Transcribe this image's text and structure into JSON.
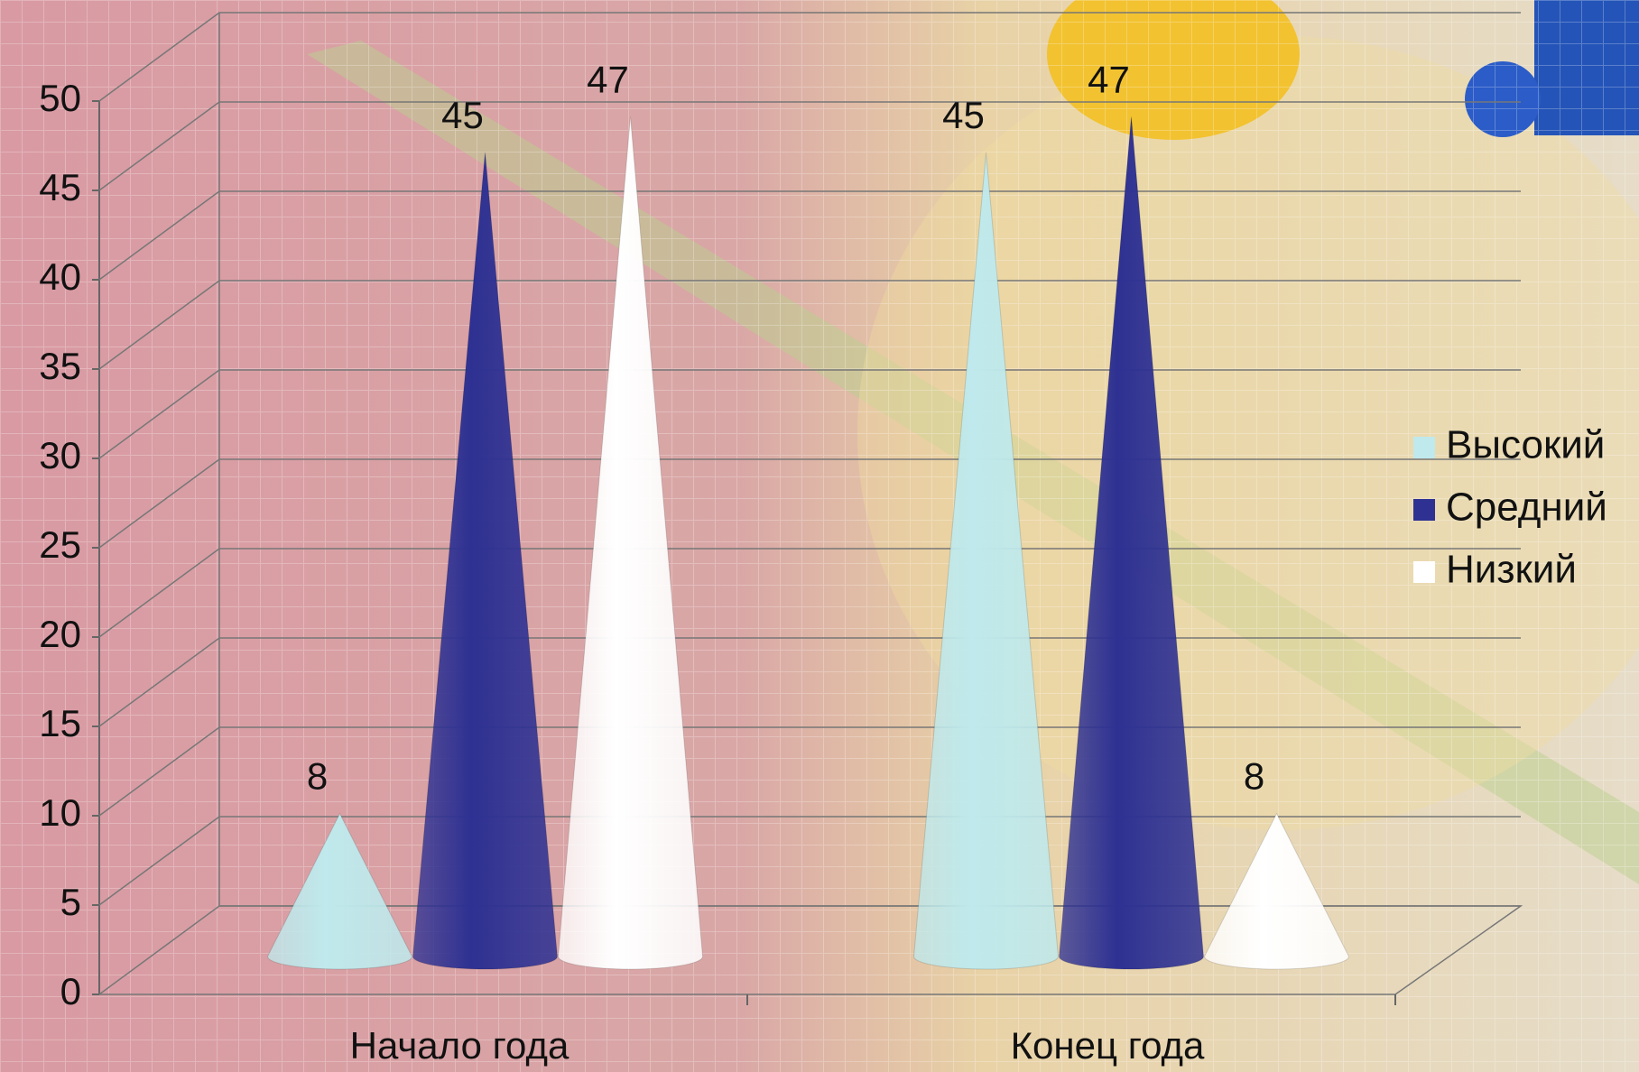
{
  "chart_data": {
    "type": "cone",
    "categories": [
      "Начало года",
      "Конец года"
    ],
    "series": [
      {
        "name": "Высокий",
        "color": "#bfe9ec",
        "values": [
          8,
          45
        ]
      },
      {
        "name": "Средний",
        "color": "#2e3192",
        "values": [
          45,
          47
        ]
      },
      {
        "name": "Низкий",
        "color": "#ffffff",
        "values": [
          47,
          8
        ]
      }
    ],
    "ylim": [
      0,
      50
    ],
    "yticks": [
      0,
      5,
      10,
      15,
      20,
      25,
      30,
      35,
      40,
      45,
      50
    ],
    "grid": true,
    "legend": "right"
  }
}
